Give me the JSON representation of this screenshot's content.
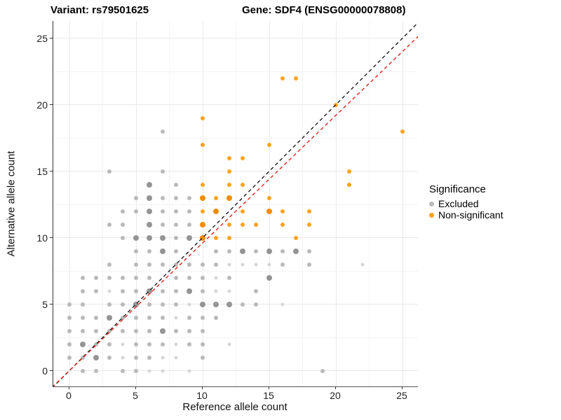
{
  "titles": {
    "variant": "Variant: rs79501625",
    "gene": "Gene: SDF4 (ENSG00000078808)"
  },
  "legend": {
    "title": "Significance",
    "items": [
      {
        "label": "Excluded",
        "color": "#b9b9b9"
      },
      {
        "label": "Non-significant",
        "color": "#fba31d"
      }
    ]
  },
  "chart_data": {
    "type": "scatter",
    "title": "Variant: rs79501625 — Gene: SDF4 (ENSG00000078808)",
    "xlabel": "Reference allele count",
    "ylabel": "Alternative allele count",
    "xlim": [
      -1.3,
      26.4
    ],
    "ylim": [
      -1.3,
      26.4
    ],
    "x_ticks": [
      0,
      5,
      10,
      15,
      20,
      25
    ],
    "y_ticks": [
      0,
      5,
      10,
      15,
      20,
      25
    ],
    "grid": "on",
    "legend_position": "right",
    "point_shades_note": "third value per point: 0=normal, 1=darker overplot, 2=lighter",
    "shade_colors": {
      "Excluded": [
        "#b9b9b9",
        "#949494",
        "#d6d6d6"
      ],
      "Non-significant": [
        "#fba31d",
        "#f18c05",
        "#fdbа5e"
      ]
    },
    "lines": [
      {
        "name": "identity",
        "slope": 1.0,
        "intercept": 0,
        "color": "#1a1a1a",
        "dash": "5 4"
      },
      {
        "name": "expected-ratio",
        "slope": 0.96,
        "intercept": 0,
        "color": "#e02418",
        "dash": "5 4"
      }
    ],
    "series": [
      {
        "name": "Excluded",
        "color": "#b9b9b9",
        "points": [
          [
            1,
            0,
            0
          ],
          [
            2,
            0,
            0
          ],
          [
            4,
            0,
            0
          ],
          [
            5,
            0,
            0
          ],
          [
            6,
            0,
            2
          ],
          [
            7,
            0,
            2
          ],
          [
            9,
            0,
            2
          ],
          [
            19,
            0,
            0
          ],
          [
            0,
            1,
            0
          ],
          [
            1,
            1,
            0
          ],
          [
            2,
            1,
            1
          ],
          [
            3,
            1,
            0
          ],
          [
            4,
            1,
            2
          ],
          [
            5,
            1,
            0
          ],
          [
            6,
            1,
            0
          ],
          [
            7,
            1,
            2
          ],
          [
            8,
            1,
            2
          ],
          [
            10,
            1,
            0
          ],
          [
            0,
            2,
            0
          ],
          [
            1,
            2,
            1
          ],
          [
            2,
            2,
            0
          ],
          [
            3,
            2,
            0
          ],
          [
            4,
            2,
            2
          ],
          [
            5,
            2,
            0
          ],
          [
            6,
            2,
            0
          ],
          [
            7,
            2,
            0
          ],
          [
            8,
            2,
            2
          ],
          [
            9,
            2,
            0
          ],
          [
            10,
            2,
            0
          ],
          [
            12,
            2,
            2
          ],
          [
            0,
            3,
            0
          ],
          [
            1,
            3,
            0
          ],
          [
            2,
            3,
            0
          ],
          [
            3,
            3,
            0
          ],
          [
            4,
            3,
            0
          ],
          [
            5,
            3,
            0
          ],
          [
            6,
            3,
            0
          ],
          [
            7,
            3,
            1
          ],
          [
            8,
            3,
            0
          ],
          [
            9,
            3,
            0
          ],
          [
            10,
            3,
            0
          ],
          [
            0,
            4,
            0
          ],
          [
            1,
            4,
            0
          ],
          [
            2,
            4,
            0
          ],
          [
            3,
            4,
            1
          ],
          [
            4,
            4,
            0
          ],
          [
            5,
            4,
            0
          ],
          [
            6,
            4,
            0
          ],
          [
            7,
            4,
            0
          ],
          [
            8,
            4,
            2
          ],
          [
            9,
            4,
            0
          ],
          [
            10,
            4,
            0
          ],
          [
            11,
            4,
            0
          ],
          [
            0,
            5,
            0
          ],
          [
            1,
            5,
            0
          ],
          [
            3,
            5,
            0
          ],
          [
            4,
            5,
            0
          ],
          [
            5,
            5,
            1
          ],
          [
            6,
            5,
            0
          ],
          [
            7,
            5,
            0
          ],
          [
            8,
            5,
            0
          ],
          [
            9,
            5,
            2
          ],
          [
            10,
            5,
            1
          ],
          [
            11,
            5,
            1
          ],
          [
            12,
            5,
            1
          ],
          [
            13,
            5,
            0
          ],
          [
            14,
            5,
            0
          ],
          [
            16,
            5,
            2
          ],
          [
            1,
            6,
            0
          ],
          [
            2,
            6,
            0
          ],
          [
            3,
            6,
            2
          ],
          [
            4,
            6,
            0
          ],
          [
            5,
            6,
            0
          ],
          [
            6,
            6,
            1
          ],
          [
            7,
            6,
            0
          ],
          [
            8,
            6,
            0
          ],
          [
            9,
            6,
            1
          ],
          [
            10,
            6,
            0
          ],
          [
            11,
            6,
            2
          ],
          [
            12,
            6,
            2
          ],
          [
            14,
            6,
            0
          ],
          [
            1,
            7,
            0
          ],
          [
            2,
            7,
            0
          ],
          [
            3,
            7,
            0
          ],
          [
            4,
            7,
            0
          ],
          [
            5,
            7,
            0
          ],
          [
            6,
            7,
            0
          ],
          [
            8,
            7,
            0
          ],
          [
            9,
            7,
            0
          ],
          [
            10,
            7,
            0
          ],
          [
            11,
            7,
            2
          ],
          [
            12,
            7,
            0
          ],
          [
            15,
            7,
            1
          ],
          [
            3,
            8,
            0
          ],
          [
            5,
            8,
            0
          ],
          [
            6,
            8,
            0
          ],
          [
            7,
            8,
            0
          ],
          [
            8,
            8,
            0
          ],
          [
            9,
            8,
            0
          ],
          [
            10,
            8,
            0
          ],
          [
            11,
            8,
            0
          ],
          [
            12,
            8,
            2
          ],
          [
            13,
            8,
            2
          ],
          [
            14,
            8,
            2
          ],
          [
            15,
            8,
            2
          ],
          [
            16,
            8,
            0
          ],
          [
            18,
            8,
            0
          ],
          [
            22,
            8,
            2
          ],
          [
            5,
            9,
            0
          ],
          [
            6,
            9,
            0
          ],
          [
            7,
            9,
            1
          ],
          [
            8,
            9,
            0
          ],
          [
            11,
            9,
            0
          ],
          [
            12,
            9,
            0
          ],
          [
            13,
            9,
            1
          ],
          [
            14,
            9,
            0
          ],
          [
            15,
            9,
            1
          ],
          [
            16,
            9,
            0
          ],
          [
            17,
            9,
            1
          ],
          [
            18,
            9,
            0
          ],
          [
            4,
            10,
            0
          ],
          [
            5,
            10,
            1
          ],
          [
            6,
            10,
            1
          ],
          [
            7,
            10,
            1
          ],
          [
            8,
            10,
            0
          ],
          [
            9,
            10,
            1
          ],
          [
            3,
            11,
            0
          ],
          [
            4,
            11,
            0
          ],
          [
            6,
            11,
            1
          ],
          [
            7,
            11,
            0
          ],
          [
            8,
            11,
            0
          ],
          [
            9,
            11,
            0
          ],
          [
            4,
            12,
            0
          ],
          [
            5,
            12,
            0
          ],
          [
            6,
            12,
            1
          ],
          [
            7,
            12,
            0
          ],
          [
            8,
            12,
            0
          ],
          [
            9,
            12,
            0
          ],
          [
            5,
            13,
            0
          ],
          [
            6,
            13,
            1
          ],
          [
            7,
            13,
            0
          ],
          [
            8,
            13,
            0
          ],
          [
            9,
            13,
            0
          ],
          [
            6,
            14,
            1
          ],
          [
            8,
            14,
            0
          ],
          [
            3,
            15,
            0
          ],
          [
            7,
            15,
            0
          ],
          [
            7,
            18,
            0
          ]
        ]
      },
      {
        "name": "Non-significant",
        "color": "#fba31d",
        "points": [
          [
            10,
            10,
            1
          ],
          [
            11,
            10,
            0
          ],
          [
            12,
            10,
            0
          ],
          [
            17,
            10,
            0
          ],
          [
            10,
            11,
            1
          ],
          [
            12,
            11,
            0
          ],
          [
            13,
            11,
            0
          ],
          [
            14,
            11,
            0
          ],
          [
            16,
            11,
            0
          ],
          [
            18,
            11,
            0
          ],
          [
            10,
            12,
            0
          ],
          [
            11,
            12,
            1
          ],
          [
            13,
            12,
            0
          ],
          [
            15,
            12,
            1
          ],
          [
            16,
            12,
            0
          ],
          [
            18,
            12,
            0
          ],
          [
            10,
            13,
            1
          ],
          [
            11,
            13,
            0
          ],
          [
            12,
            13,
            1
          ],
          [
            15,
            13,
            0
          ],
          [
            10,
            14,
            0
          ],
          [
            12,
            14,
            0
          ],
          [
            13,
            14,
            0
          ],
          [
            21,
            14,
            0
          ],
          [
            12,
            15,
            0
          ],
          [
            21,
            15,
            0
          ],
          [
            12,
            16,
            0
          ],
          [
            13,
            16,
            0
          ],
          [
            10,
            17,
            0
          ],
          [
            15,
            17,
            0
          ],
          [
            10,
            19,
            0
          ],
          [
            20,
            20,
            0
          ],
          [
            16,
            22,
            0
          ],
          [
            17,
            22,
            0
          ],
          [
            25,
            18,
            0
          ]
        ]
      }
    ]
  }
}
